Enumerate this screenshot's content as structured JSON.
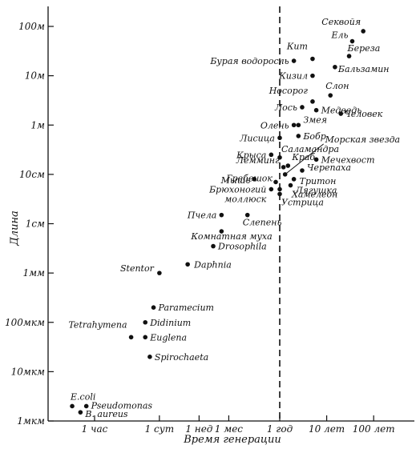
{
  "chart_data": {
    "type": "scatter",
    "title": "",
    "xlabel": "Время генерации",
    "ylabel": "Длина",
    "y_scale": "log",
    "x_scale": "log",
    "ylim": [
      "1 мкм",
      "100 м"
    ],
    "grid": false,
    "reference_line": "1 год (vertical dashed line)",
    "x_ticks": [
      "1 час",
      "1 сут",
      "1 нед",
      "1 мес",
      "1 год",
      "10 лет",
      "100 лет"
    ],
    "y_ticks": [
      "100м",
      "10м",
      "1м",
      "10см",
      "1см",
      "1мм",
      "100мкм",
      "10мкм",
      "1мкм"
    ],
    "points": [
      {
        "label": "E.coli",
        "x": "20 мин",
        "y": "2 мкм"
      },
      {
        "label": "Pseudomonas",
        "x": "40 мин",
        "y": "2 мкм"
      },
      {
        "label": "B. aureus",
        "x": "30 мин",
        "y": "1.5 мкм"
      },
      {
        "label": "Tetrahymena",
        "x": "6 ч",
        "y": "50 мкм"
      },
      {
        "label": "Paramecium",
        "x": "18 ч",
        "y": "200 мкм"
      },
      {
        "label": "Didinium",
        "x": "12 ч",
        "y": "100 мкм"
      },
      {
        "label": "Euglena",
        "x": "12 ч",
        "y": "50 мкм"
      },
      {
        "label": "Spirochaeta",
        "x": "15 ч",
        "y": "20 мкм"
      },
      {
        "label": "Stentor",
        "x": "1 сут",
        "y": "1 мм"
      },
      {
        "label": "Daphnia",
        "x": "4 сут",
        "y": "1.5 мм"
      },
      {
        "label": "Drosophila",
        "x": "2 нед",
        "y": "3.5 мм"
      },
      {
        "label": "Комнатная муха",
        "x": "3 нед",
        "y": "7 мм"
      },
      {
        "label": "Пчела",
        "x": "3 нед",
        "y": "1.5 см"
      },
      {
        "label": "Слепень",
        "x": "2.5 мес",
        "y": "1.5 см"
      },
      {
        "label": "Устрица",
        "x": "1 год",
        "y": "4 см"
      },
      {
        "label": "Хамелеон",
        "x": "1 год",
        "y": "5 см"
      },
      {
        "label": "Лягушка",
        "x": "1.7 года",
        "y": "6 см"
      },
      {
        "label": "Тритон",
        "x": "2 года",
        "y": "8 см"
      },
      {
        "label": "Брюхоногий моллюск",
        "x": "8 мес",
        "y": "5 см"
      },
      {
        "label": "Мышь",
        "x": "3.5 мес",
        "y": "8 см"
      },
      {
        "label": "Гребешок",
        "x": "10 мес",
        "y": "7 см"
      },
      {
        "label": "Морская звезда",
        "x": "1.3 года",
        "y": "10 см"
      },
      {
        "label": "Черепаха",
        "x": "3 года",
        "y": "12 см"
      },
      {
        "label": "Лемминг",
        "x": "1.2 года",
        "y": "14 см"
      },
      {
        "label": "Краб",
        "x": "1.5 года",
        "y": "15 см"
      },
      {
        "label": "Мечехвост",
        "x": "6 лет",
        "y": "20 см"
      },
      {
        "label": "Саламандра",
        "x": "1 год",
        "y": "22 см"
      },
      {
        "label": "Крыса",
        "x": "8 мес",
        "y": "25 см"
      },
      {
        "label": "Лисица",
        "x": "1 год",
        "y": "55 см"
      },
      {
        "label": "Бобр",
        "x": "2.5 года",
        "y": "60 см"
      },
      {
        "label": "Змея",
        "x": "2.5 года",
        "y": "1 м"
      },
      {
        "label": "Олень",
        "x": "2 года",
        "y": "1 м"
      },
      {
        "label": "Человек",
        "x": "20 лет",
        "y": "1.7 м"
      },
      {
        "label": "Медведь",
        "x": "6 лет",
        "y": "2 м"
      },
      {
        "label": "Лось",
        "x": "3 года",
        "y": "2.3 м"
      },
      {
        "label": "Носорог",
        "x": "5 лет",
        "y": "3 м"
      },
      {
        "label": "Слон",
        "x": "12 лет",
        "y": "4 м"
      },
      {
        "label": "Кизил",
        "x": "5 лет",
        "y": "10 м"
      },
      {
        "label": "Бурая водоросль",
        "x": "2 года",
        "y": "20 м"
      },
      {
        "label": "Кит",
        "x": "5 лет",
        "y": "22 м"
      },
      {
        "label": "Бальзамин",
        "x": "15 лет",
        "y": "15 м"
      },
      {
        "label": "Береза",
        "x": "30 лет",
        "y": "25 м"
      },
      {
        "label": "Ель",
        "x": "35 лет",
        "y": "50 м"
      },
      {
        "label": "Секвойя",
        "x": "60 лет",
        "y": "80 м"
      }
    ]
  }
}
